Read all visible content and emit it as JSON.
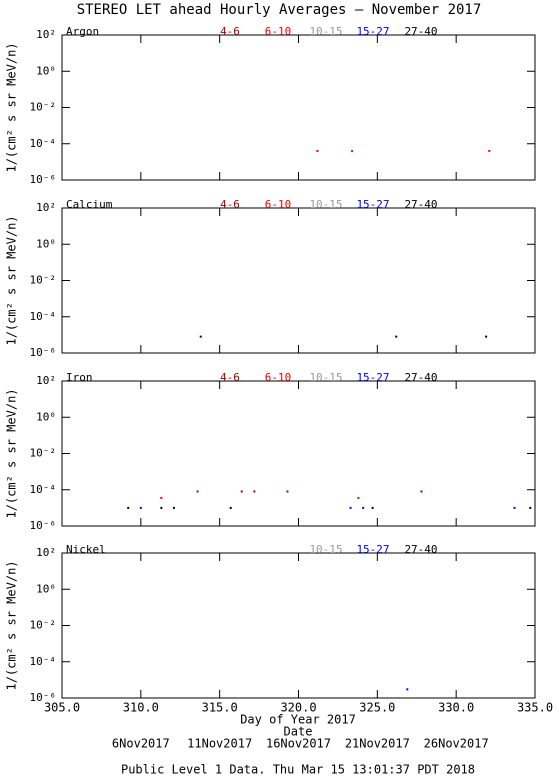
{
  "title": "STEREO LET ahead Hourly Averages – November 2017",
  "footer": "Public Level 1 Data. Thu Mar 15 13:01:37 PDT 2018",
  "x_axis": {
    "label": "Day of Year 2017",
    "date_label": "Date",
    "date_ticks": [
      {
        "value": 310,
        "label": "6Nov2017"
      },
      {
        "value": 315,
        "label": "11Nov2017"
      },
      {
        "value": 320,
        "label": "16Nov2017"
      },
      {
        "value": 325,
        "label": "21Nov2017"
      },
      {
        "value": 330,
        "label": "26Nov2017"
      }
    ]
  },
  "chart_data": [
    {
      "type": "scatter",
      "panel_label": "Argon",
      "ylabel": "1/(cm² s sr MeV/n)",
      "log_y": true,
      "xlim": [
        305,
        335
      ],
      "xticks": [
        305,
        310,
        315,
        320,
        325,
        330,
        335
      ],
      "ylim": [
        1e-06,
        100
      ],
      "yticks": [
        {
          "value": 100,
          "label": "10²"
        },
        {
          "value": 1,
          "label": "10⁰"
        },
        {
          "value": 0.01,
          "label": "10⁻²"
        },
        {
          "value": 0.0001,
          "label": "10⁻⁴"
        },
        {
          "value": 1e-06,
          "label": "10⁻⁶"
        }
      ],
      "series": [
        {
          "name": "4-6",
          "color": "#b00000",
          "x": [],
          "values": []
        },
        {
          "name": "6-10",
          "color": "#ff0000",
          "x": [
            321.2,
            323.4,
            332.1
          ],
          "values": [
            4e-05,
            4e-05,
            4e-05
          ]
        },
        {
          "name": "10-15",
          "color": "#999999",
          "x": [],
          "values": []
        },
        {
          "name": "15-27",
          "color": "#0000ff",
          "x": [],
          "values": []
        },
        {
          "name": "27-40",
          "color": "#000000",
          "x": [],
          "values": []
        }
      ]
    },
    {
      "type": "scatter",
      "panel_label": "Calcium",
      "ylabel": "1/(cm² s sr MeV/n)",
      "log_y": true,
      "xlim": [
        305,
        335
      ],
      "xticks": [
        305,
        310,
        315,
        320,
        325,
        330,
        335
      ],
      "ylim": [
        1e-06,
        100
      ],
      "yticks": [
        {
          "value": 100,
          "label": "10²"
        },
        {
          "value": 1,
          "label": "10⁰"
        },
        {
          "value": 0.01,
          "label": "10⁻²"
        },
        {
          "value": 0.0001,
          "label": "10⁻⁴"
        },
        {
          "value": 1e-06,
          "label": "10⁻⁶"
        }
      ],
      "series": [
        {
          "name": "4-6",
          "color": "#b00000",
          "x": [],
          "values": []
        },
        {
          "name": "6-10",
          "color": "#ff0000",
          "x": [],
          "values": []
        },
        {
          "name": "10-15",
          "color": "#999999",
          "x": [],
          "values": []
        },
        {
          "name": "15-27",
          "color": "#0000ff",
          "x": [],
          "values": []
        },
        {
          "name": "27-40",
          "color": "#000000",
          "x": [
            313.8,
            326.2,
            331.9
          ],
          "values": [
            8e-06,
            8e-06,
            8e-06
          ]
        }
      ]
    },
    {
      "type": "scatter",
      "panel_label": "Iron",
      "ylabel": "1/(cm² s sr MeV/n)",
      "log_y": true,
      "xlim": [
        305,
        335
      ],
      "xticks": [
        305,
        310,
        315,
        320,
        325,
        330,
        335
      ],
      "ylim": [
        1e-06,
        100
      ],
      "yticks": [
        {
          "value": 100,
          "label": "10²"
        },
        {
          "value": 1,
          "label": "10⁰"
        },
        {
          "value": 0.01,
          "label": "10⁻²"
        },
        {
          "value": 0.0001,
          "label": "10⁻⁴"
        },
        {
          "value": 1e-06,
          "label": "10⁻⁶"
        }
      ],
      "series": [
        {
          "name": "4-6",
          "color": "#b00000",
          "x": [
            313.6,
            316.4,
            317.2,
            319.3,
            327.8
          ],
          "values": [
            8e-05,
            8e-05,
            8e-05,
            8e-05,
            8e-05
          ]
        },
        {
          "name": "6-10",
          "color": "#ff0000",
          "x": [
            311.3,
            323.8
          ],
          "values": [
            3.5e-05,
            3.5e-05
          ]
        },
        {
          "name": "10-15",
          "color": "#999999",
          "x": [],
          "values": []
        },
        {
          "name": "15-27",
          "color": "#0000ff",
          "x": [
            310.0,
            323.3,
            324.1,
            333.7
          ],
          "values": [
            1e-05,
            1e-05,
            1e-05,
            1e-05
          ]
        },
        {
          "name": "27-40",
          "color": "#000000",
          "x": [
            309.2,
            311.3,
            312.1,
            315.7,
            324.7,
            334.7
          ],
          "values": [
            1e-05,
            1e-05,
            1e-05,
            1e-05,
            1e-05,
            1e-05
          ]
        }
      ]
    },
    {
      "type": "scatter",
      "panel_label": "Nickel",
      "ylabel": "1/(cm² s sr MeV/n)",
      "log_y": true,
      "xlim": [
        305,
        335
      ],
      "xticks": [
        {
          "value": 305,
          "label": "305.0"
        },
        {
          "value": 310,
          "label": "310.0"
        },
        {
          "value": 315,
          "label": "315.0"
        },
        {
          "value": 320,
          "label": "320.0"
        },
        {
          "value": 325,
          "label": "325.0"
        },
        {
          "value": 330,
          "label": "330.0"
        },
        {
          "value": 335,
          "label": "335.0"
        }
      ],
      "ylim": [
        1e-06,
        100
      ],
      "yticks": [
        {
          "value": 100,
          "label": "10²"
        },
        {
          "value": 1,
          "label": "10⁰"
        },
        {
          "value": 0.01,
          "label": "10⁻²"
        },
        {
          "value": 0.0001,
          "label": "10⁻⁴"
        },
        {
          "value": 1e-06,
          "label": "10⁻⁶"
        }
      ],
      "series": [
        {
          "name": "10-15",
          "color": "#999999",
          "x": [],
          "values": []
        },
        {
          "name": "15-27",
          "color": "#0000ff",
          "x": [
            326.9
          ],
          "values": [
            3e-06
          ]
        },
        {
          "name": "27-40",
          "color": "#000000",
          "x": [],
          "values": []
        }
      ]
    }
  ]
}
